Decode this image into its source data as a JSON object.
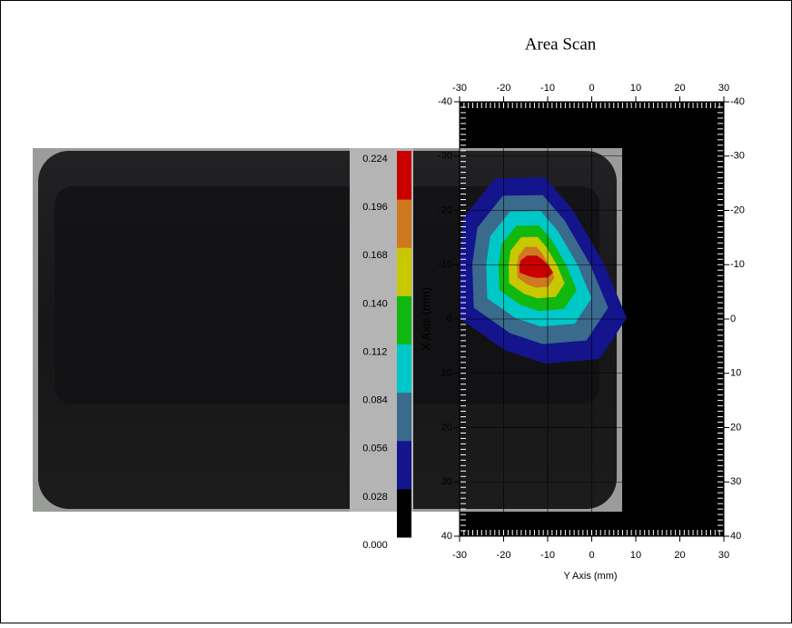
{
  "chart_data": {
    "type": "contour",
    "title": "Area Scan",
    "xlabel": "Y Axis (mm)",
    "ylabel": "X Axis (mm)",
    "xlim": [
      -30,
      30
    ],
    "xticks": [
      -30,
      -20,
      -10,
      0,
      10,
      20,
      30
    ],
    "ylim": [
      -40,
      40
    ],
    "y_inverted": true,
    "yticks": [
      -40,
      -30,
      -20,
      -10,
      0,
      10,
      20,
      30,
      40
    ],
    "levels": [
      {
        "value": 0,
        "label": "0.000"
      },
      {
        "value": 0.028,
        "label": "0.028"
      },
      {
        "value": 0.056,
        "label": "0.056"
      },
      {
        "value": 0.084,
        "label": "0.084"
      },
      {
        "value": 0.112,
        "label": "0.112"
      },
      {
        "value": 0.14,
        "label": "0.140"
      },
      {
        "value": 0.168,
        "label": "0.168"
      },
      {
        "value": 0.196,
        "label": "0.196"
      },
      {
        "value": 0.224,
        "label": "0.224"
      }
    ],
    "level_colors": [
      "#000000",
      "#14148c",
      "#3a6a8c",
      "#00c8c8",
      "#10b810",
      "#c8c800",
      "#d07820",
      "#c80000"
    ]
  }
}
